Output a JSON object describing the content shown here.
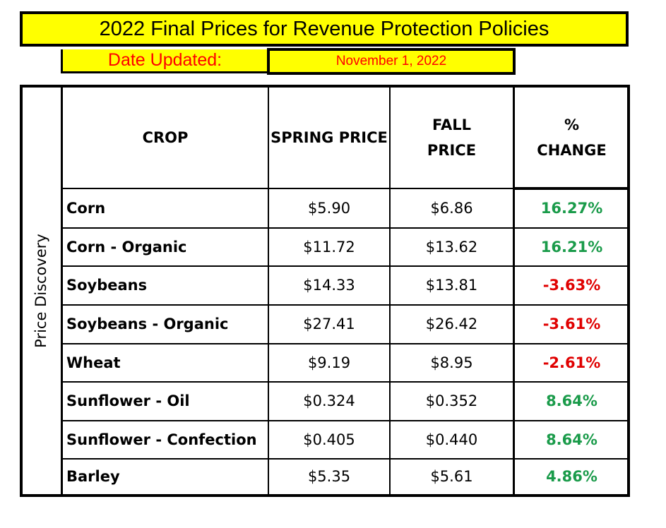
{
  "title": "2022 Final Prices for Revenue Protection Policies",
  "date_label": "Date Updated:",
  "date_value": "November 1, 2022",
  "side_label": "Price Discovery",
  "headers": {
    "crop": "CROP",
    "spring": "SPRING PRICE",
    "fall_line1": "FALL",
    "fall_line2": "PRICE",
    "change_line1": "%",
    "change_line2": "CHANGE"
  },
  "colors": {
    "banner": "#ffff00",
    "date_text": "#ff0000",
    "positive": "#1a9b4a",
    "negative": "#e00000"
  },
  "rows": [
    {
      "crop": "Corn",
      "spring": "$5.90",
      "fall": "$6.86",
      "change": "16.27%",
      "trend": "positive"
    },
    {
      "crop": "Corn - Organic",
      "spring": "$11.72",
      "fall": "$13.62",
      "change": "16.21%",
      "trend": "positive"
    },
    {
      "crop": "Soybeans",
      "spring": "$14.33",
      "fall": "$13.81",
      "change": "-3.63%",
      "trend": "negative"
    },
    {
      "crop": "Soybeans - Organic",
      "spring": "$27.41",
      "fall": "$26.42",
      "change": "-3.61%",
      "trend": "negative"
    },
    {
      "crop": "Wheat",
      "spring": "$9.19",
      "fall": "$8.95",
      "change": "-2.61%",
      "trend": "negative"
    },
    {
      "crop": "Sunflower - Oil",
      "spring": "$0.324",
      "fall": "$0.352",
      "change": "8.64%",
      "trend": "positive"
    },
    {
      "crop": "Sunflower - Confection",
      "spring": "$0.405",
      "fall": "$0.440",
      "change": "8.64%",
      "trend": "positive"
    },
    {
      "crop": "Barley",
      "spring": "$5.35",
      "fall": "$5.61",
      "change": "4.86%",
      "trend": "positive"
    }
  ]
}
